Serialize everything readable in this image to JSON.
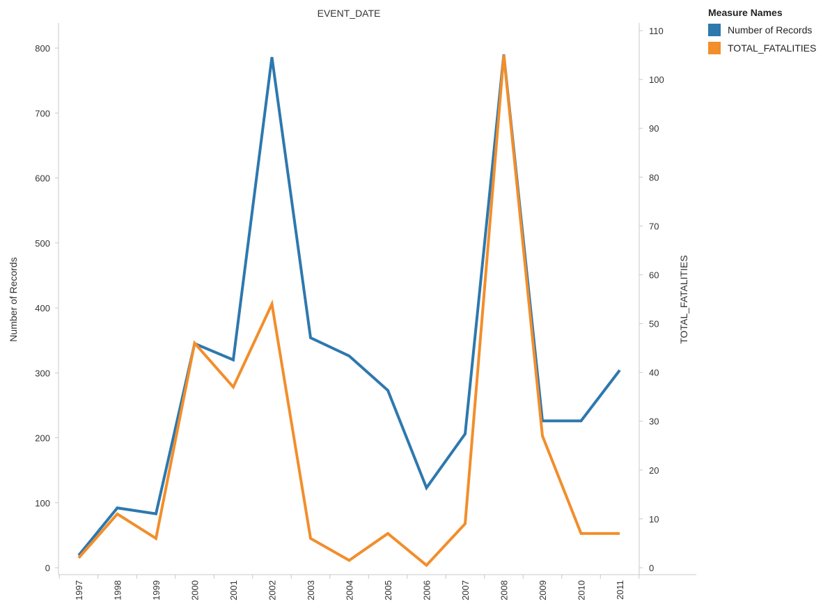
{
  "chart_data": {
    "type": "line",
    "title": "",
    "top_axis_label": "EVENT_DATE",
    "xlabel": "",
    "ylabel": "Number of Records",
    "y2label": "TOTAL_FATALITIES",
    "categories": [
      "1997",
      "1998",
      "1999",
      "2000",
      "2001",
      "2002",
      "2003",
      "2004",
      "2005",
      "2006",
      "2007",
      "2008",
      "2009",
      "2010",
      "2011"
    ],
    "ylim": [
      0,
      820
    ],
    "y2lim": [
      0,
      112.8
    ],
    "yticks": [
      0,
      100,
      200,
      300,
      400,
      500,
      600,
      700,
      800
    ],
    "y2ticks": [
      0,
      10,
      20,
      30,
      40,
      50,
      60,
      70,
      80,
      90,
      100,
      110
    ],
    "series": [
      {
        "name": "Number of Records",
        "axis": "left",
        "color": "#2E78AE",
        "values": [
          19,
          92,
          83,
          345,
          320,
          786,
          354,
          326,
          273,
          123,
          206,
          790,
          226,
          226,
          304
        ]
      },
      {
        "name": "TOTAL_FATALITIES",
        "axis": "right",
        "color": "#F28E2B",
        "values": [
          2,
          11,
          6,
          46,
          37,
          54,
          6,
          1.5,
          7,
          0.5,
          9,
          105,
          27,
          7,
          7
        ]
      }
    ],
    "legend": {
      "title": "Measure Names",
      "position": "top-right"
    },
    "grid": false
  }
}
